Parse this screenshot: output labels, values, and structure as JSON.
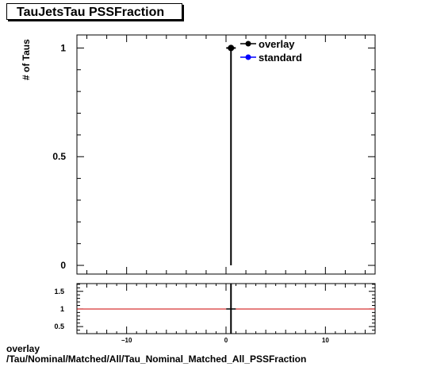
{
  "chart_data": [
    {
      "type": "scatter",
      "title": "TauJetsTau PSSFraction",
      "ylabel": "# of Taus",
      "xlim": [
        -15,
        15
      ],
      "ylim": [
        -0.04,
        1.06
      ],
      "yticks": [
        0,
        0.5,
        1
      ],
      "ytick_labels": [
        "0",
        "0.5",
        "1"
      ],
      "grid": false,
      "legend_placement": "top-right",
      "series": [
        {
          "name": "overlay",
          "color": "#000000",
          "x": [
            0.5
          ],
          "y": [
            1
          ],
          "yerr": [
            1
          ]
        },
        {
          "name": "standard",
          "color": "#0000ff",
          "x": [],
          "y": []
        }
      ]
    },
    {
      "type": "line",
      "xlim": [
        -15,
        15
      ],
      "ylim": [
        0.3,
        1.72
      ],
      "xticks": [
        -10,
        0,
        10
      ],
      "xtick_labels": [
        "−10",
        "0",
        "10"
      ],
      "yticks": [
        0.5,
        1,
        1.5
      ],
      "ytick_labels": [
        "0.5",
        "1",
        "1.5"
      ],
      "reference_line": {
        "y": 1,
        "color": "#cc0000"
      },
      "points": [
        {
          "x": 0.5,
          "y": 1,
          "yerr": 0.72
        }
      ]
    }
  ],
  "footer": {
    "line1": "overlay",
    "line2": "/Tau/Nominal/Matched/All/Tau_Nominal_Matched_All_PSSFraction"
  }
}
